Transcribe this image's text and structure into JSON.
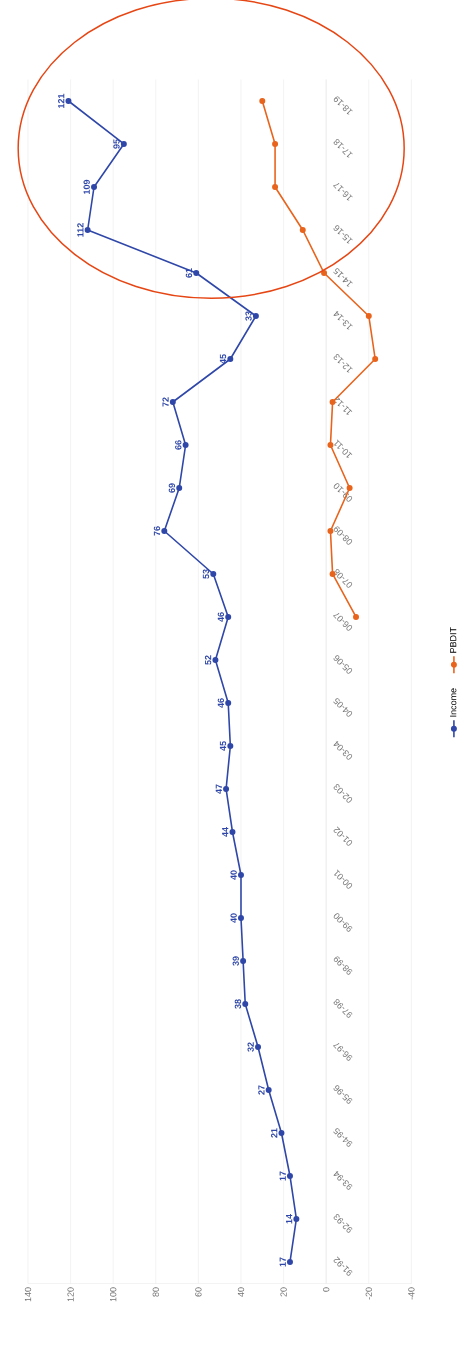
{
  "chart_data": {
    "type": "line",
    "orientation": "horizontal",
    "categories": [
      "18-19",
      "17-18",
      "16-17",
      "15-16",
      "14-15",
      "13-14",
      "12-13",
      "11-12",
      "10-11",
      "09-10",
      "08-09",
      "07-08",
      "06-07",
      "05-06",
      "04-05",
      "03-04",
      "02-03",
      "01-02",
      "00-01",
      "99-00",
      "98-99",
      "97-98",
      "96-97",
      "95-96",
      "94-95",
      "93-94",
      "92-93",
      "91-92"
    ],
    "series": [
      {
        "name": "Income",
        "color": "#2f47a8",
        "values": [
          121,
          95,
          109,
          112,
          61,
          33,
          45,
          72,
          66,
          69,
          76,
          53,
          46,
          52,
          46,
          45,
          47,
          44,
          40,
          40,
          39,
          38,
          32,
          27,
          21,
          17,
          14,
          17
        ],
        "value_labels": [
          "121",
          "95",
          "109",
          "112",
          "61",
          "33",
          "45",
          "72",
          "66",
          "69",
          "76",
          "53",
          "46",
          "52",
          "46",
          "45",
          "47",
          "44",
          "40",
          "40",
          "39",
          "38",
          "32",
          "27",
          "21",
          "17",
          "14",
          "17"
        ]
      },
      {
        "name": "PBDIT",
        "color": "#e8641c",
        "values": [
          30,
          24,
          24,
          11,
          1,
          -20,
          -23,
          -3,
          -2,
          -11,
          -2,
          -3,
          -14,
          null,
          null,
          null,
          null,
          null,
          null,
          null,
          null,
          null,
          null,
          null,
          null,
          null,
          null,
          null
        ]
      }
    ],
    "xlim": [
      140,
      -40
    ],
    "xticks": [
      140,
      120,
      100,
      80,
      60,
      40,
      20,
      0,
      -20,
      -40
    ],
    "grid": "x",
    "legend": "right",
    "marker": "circle"
  }
}
